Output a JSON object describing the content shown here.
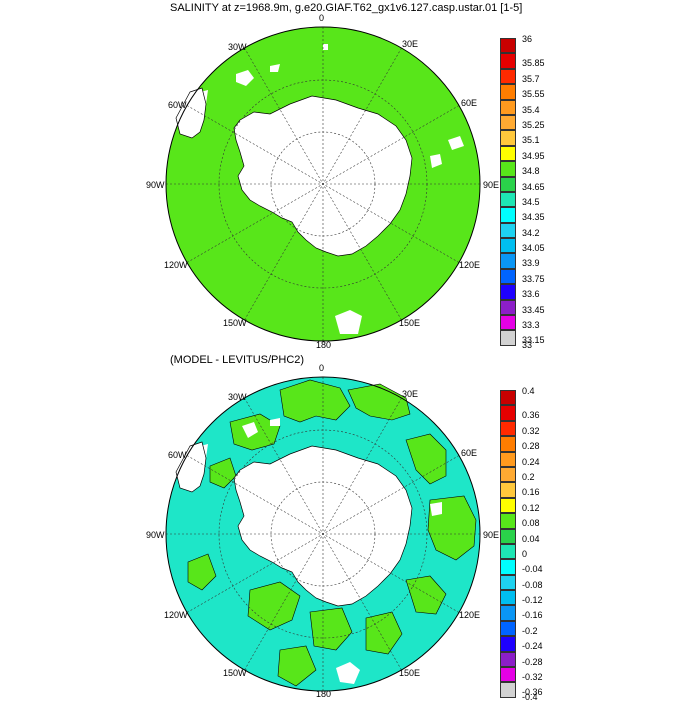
{
  "panels": [
    {
      "title": "SALINITY at z=1968.9m, g.e20.GIAF.T62_gx1v6.127.casp.ustar.01 [1-5]",
      "fill_color": "#58e61a",
      "secondary_color": "#58e61a",
      "lon_labels": {
        "lon_0": "0",
        "lon_30E": "30E",
        "lon_60E": "60E",
        "lon_90E": "90E",
        "lon_120E": "120E",
        "lon_150E": "150E",
        "lon_180": "180",
        "lon_150W": "150W",
        "lon_120W": "120W",
        "lon_90W": "90W",
        "lon_60W": "60W",
        "lon_30W": "30W"
      },
      "legend": {
        "levels": [
          "36",
          "35.85",
          "35.7",
          "35.55",
          "35.4",
          "35.25",
          "35.1",
          "34.95",
          "34.8",
          "34.65",
          "34.5",
          "34.35",
          "34.2",
          "34.05",
          "33.9",
          "33.75",
          "33.6",
          "33.45",
          "33.3",
          "33.15",
          "33"
        ],
        "colors": [
          "#c80000",
          "#e60000",
          "#ff2a00",
          "#ff7d00",
          "#ff9a1e",
          "#ffaa32",
          "#ffc83c",
          "#ffff00",
          "#58e61a",
          "#2ad24a",
          "#1ee6b4",
          "#00ffff",
          "#1ed2f0",
          "#00bef0",
          "#0a96f5",
          "#0064ff",
          "#1e00ff",
          "#8c1ec8",
          "#e600e6",
          "#d2d2d2",
          "#6e6e6e"
        ]
      }
    },
    {
      "title": "(MODEL - LEVITUS/PHC2)",
      "fill_color": "#1ee6c8",
      "secondary_color": "#58e61a",
      "lon_labels": {
        "lon_0": "0",
        "lon_30E": "30E",
        "lon_60E": "60E",
        "lon_90E": "90E",
        "lon_120E": "120E",
        "lon_150E": "150E",
        "lon_180": "180",
        "lon_150W": "150W",
        "lon_120W": "120W",
        "lon_90W": "90W",
        "lon_60W": "60W",
        "lon_30W": "30W"
      },
      "legend": {
        "levels": [
          "0.4",
          "0.36",
          "0.32",
          "0.28",
          "0.24",
          "0.2",
          "0.16",
          "0.12",
          "0.08",
          "0.04",
          "0",
          "-0.04",
          "-0.08",
          "-0.12",
          "-0.16",
          "-0.2",
          "-0.24",
          "-0.28",
          "-0.32",
          "-0.36",
          "-0.4"
        ],
        "colors": [
          "#c80000",
          "#e60000",
          "#ff2a00",
          "#ff7d00",
          "#ff9a1e",
          "#ffaa32",
          "#ffc83c",
          "#ffff00",
          "#58e61a",
          "#2ad24a",
          "#1ee6b4",
          "#00ffff",
          "#1ed2f0",
          "#00bef0",
          "#0a96f5",
          "#0064ff",
          "#1e00ff",
          "#8c1ec8",
          "#e600e6",
          "#d2d2d2",
          "#6e6e6e"
        ]
      }
    }
  ]
}
